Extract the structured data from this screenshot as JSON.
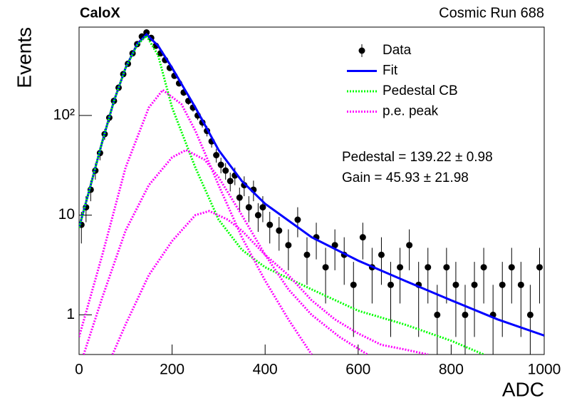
{
  "chart_data": {
    "type": "line",
    "title": "CaloX",
    "subtitle": "Cosmic Run 688",
    "x_label": "ADC",
    "y_label": "Events",
    "log_y": true,
    "legend": "upper right",
    "xlim": [
      0,
      1000
    ],
    "ylim": [
      0.4,
      770
    ],
    "xticks": [
      0,
      200,
      400,
      600,
      800,
      1000
    ],
    "yticks": [
      1,
      10,
      {
        "value": 100,
        "label": "10²"
      }
    ],
    "annotations": [
      "Pedestal = 139.22 ± 0.98",
      "Gain = 45.93 ± 21.98"
    ],
    "series": [
      {
        "name": "Data",
        "type": "errorbar",
        "color": "#000000",
        "x": [
          5,
          15,
          25,
          35,
          45,
          55,
          65,
          75,
          85,
          95,
          105,
          115,
          125,
          135,
          145,
          155,
          165,
          175,
          185,
          195,
          205,
          215,
          225,
          235,
          245,
          255,
          265,
          275,
          285,
          295,
          305,
          315,
          325,
          335,
          345,
          355,
          365,
          375,
          385,
          395,
          410,
          430,
          450,
          470,
          490,
          510,
          530,
          550,
          570,
          590,
          610,
          630,
          650,
          670,
          690,
          710,
          730,
          750,
          770,
          790,
          810,
          830,
          850,
          870,
          890,
          910,
          930,
          950,
          970,
          990
        ],
        "values": [
          8,
          12,
          18,
          28,
          42,
          65,
          95,
          140,
          190,
          260,
          330,
          420,
          520,
          620,
          680,
          600,
          500,
          420,
          360,
          300,
          250,
          210,
          170,
          140,
          120,
          100,
          85,
          70,
          55,
          40,
          32,
          28,
          22,
          25,
          15,
          20,
          12,
          18,
          10,
          12,
          8,
          7,
          5,
          9,
          4,
          6,
          3,
          5,
          4,
          2,
          6,
          3,
          4,
          2,
          3,
          5,
          2,
          3,
          1,
          3,
          2,
          1,
          2,
          3,
          1,
          2,
          3,
          2,
          1,
          3
        ],
        "errors": [
          2.8,
          3.5,
          4.2,
          5.3,
          6.5,
          8.1,
          9.7,
          11.8,
          13.8,
          16.1,
          18.2,
          20.5,
          22.8,
          24.9,
          26.1,
          24.5,
          22.4,
          20.5,
          19,
          17.3,
          15.8,
          14.5,
          13,
          11.8,
          11,
          10,
          9.2,
          8.4,
          7.4,
          6.3,
          5.7,
          5.3,
          4.7,
          5,
          3.9,
          4.5,
          3.5,
          4.2,
          3.2,
          3.5,
          2.8,
          2.6,
          2.2,
          3,
          2,
          2.4,
          1.7,
          2.2,
          2,
          1.4,
          2.4,
          1.7,
          2,
          1.4,
          1.7,
          2.2,
          1.4,
          1.7,
          1,
          1.7,
          1.4,
          1,
          1.4,
          1.7,
          1,
          1.4,
          1.7,
          1.4,
          1,
          1.7
        ]
      },
      {
        "name": "Fit",
        "type": "line",
        "color": "#0000ff",
        "x": [
          0,
          25,
          50,
          75,
          100,
          125,
          145,
          170,
          200,
          250,
          300,
          350,
          400,
          500,
          600,
          700,
          800,
          900,
          1000
        ],
        "values": [
          7.5,
          20,
          55,
          140,
          300,
          520,
          650,
          500,
          300,
          120,
          45,
          22,
          13,
          6,
          3.5,
          2.2,
          1.4,
          0.9,
          0.62
        ]
      },
      {
        "name": "Pedestal CB",
        "type": "line",
        "color": "#00ff00",
        "x": [
          0,
          25,
          50,
          75,
          100,
          125,
          145,
          170,
          200,
          250,
          300,
          350,
          400,
          500,
          600,
          700,
          800,
          870
        ],
        "values": [
          7.5,
          20,
          55,
          140,
          300,
          510,
          630,
          400,
          120,
          30,
          9,
          4.5,
          3,
          1.8,
          1.1,
          0.8,
          0.55,
          0.4
        ]
      },
      {
        "name": "p.e. peak",
        "type": "line",
        "color": "#ff00ff",
        "curves": [
          {
            "x": [
              0,
              50,
              100,
              150,
              180,
              220,
              250,
              300,
              350,
              400,
              450,
              500
            ],
            "values": [
              0.6,
              4,
              30,
              120,
              180,
              130,
              70,
              20,
              6,
              2.2,
              0.9,
              0.4
            ]
          },
          {
            "x": [
              10,
              50,
              100,
              150,
              200,
              230,
              270,
              300,
              350,
              400,
              450,
              500,
              560,
              620
            ],
            "values": [
              0.4,
              1.5,
              7,
              20,
              38,
              45,
              36,
              24,
              10,
              4,
              1.8,
              1,
              0.6,
              0.4
            ]
          },
          {
            "x": [
              72,
              100,
              150,
              200,
              250,
              280,
              320,
              350,
              400,
              450,
              500,
              550,
              600,
              650,
              700,
              750
            ],
            "values": [
              0.4,
              0.8,
              2.5,
              5.5,
              10,
              11,
              9,
              7,
              4,
              2.5,
              1.4,
              0.9,
              0.65,
              0.5,
              0.45,
              0.4
            ]
          }
        ]
      }
    ]
  }
}
